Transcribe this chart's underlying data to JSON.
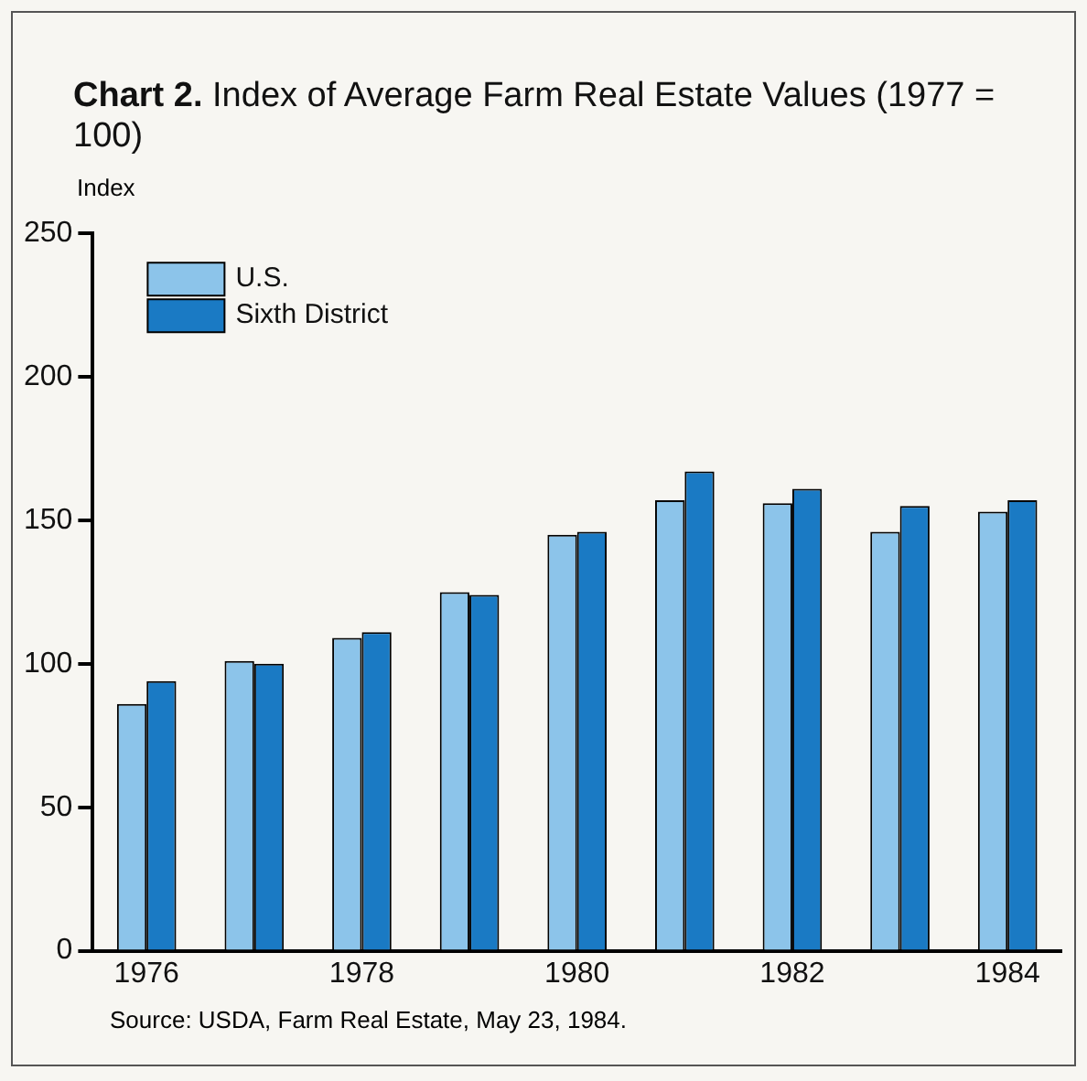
{
  "chart_data": {
    "type": "bar",
    "title": "Chart 2. Index of Average Farm Real Estate Values (1977 = 100)",
    "ylabel": "Index",
    "categories": [
      "1976",
      null,
      "1978",
      null,
      "1980",
      null,
      "1982",
      null,
      "1984"
    ],
    "series": [
      {
        "name": "U.S.",
        "color": "#8cc4ea",
        "values": [
          86,
          101,
          109,
          125,
          145,
          157,
          156,
          146,
          153
        ]
      },
      {
        "name": "Sixth District",
        "color": "#1a7ac4",
        "values": [
          94,
          100,
          111,
          124,
          146,
          167,
          161,
          155,
          157
        ]
      }
    ],
    "ylim": [
      0,
      250
    ],
    "yticks": [
      0,
      50,
      100,
      150,
      200,
      250
    ],
    "grid": false,
    "legend": "top left",
    "annotations": [
      "Source: USDA, Farm Real Estate, May 23, 1984."
    ]
  }
}
